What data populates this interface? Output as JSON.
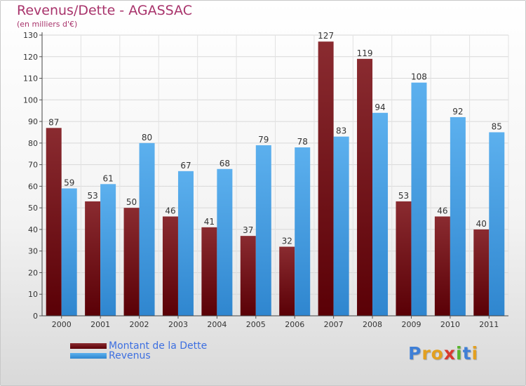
{
  "page": {
    "title": "Revenus/Dette - AGASSAC",
    "subtitle": "(en milliers d'€)"
  },
  "legend": {
    "items": [
      {
        "label": "Montant de la Dette",
        "color": "#6b0d11"
      },
      {
        "label": "Revenus",
        "color": "#4aa3e8"
      }
    ]
  },
  "logo": {
    "text": "Proxiti",
    "letters": [
      {
        "ch": "P",
        "color": "#3f7fd6"
      },
      {
        "ch": "r",
        "color": "#e3a020"
      },
      {
        "ch": "o",
        "color": "#e3a020"
      },
      {
        "ch": "x",
        "color": "#d83a2e"
      },
      {
        "ch": "i",
        "color": "#58b52c"
      },
      {
        "ch": "t",
        "color": "#3f7fd6"
      },
      {
        "ch": "i",
        "color": "#e3a020"
      }
    ]
  },
  "chart_data": {
    "type": "bar",
    "title": "Revenus/Dette - AGASSAC",
    "subtitle": "(en milliers d'€)",
    "categories": [
      "2000",
      "2001",
      "2002",
      "2003",
      "2004",
      "2005",
      "2006",
      "2007",
      "2008",
      "2009",
      "2010",
      "2011"
    ],
    "series": [
      {
        "name": "Montant de la Dette",
        "color": "#6b0d11",
        "values": [
          87,
          53,
          50,
          46,
          41,
          37,
          32,
          127,
          119,
          53,
          46,
          40
        ]
      },
      {
        "name": "Revenus",
        "color": "#4aa3e8",
        "values": [
          59,
          61,
          80,
          67,
          68,
          79,
          78,
          83,
          94,
          108,
          92,
          85
        ]
      }
    ],
    "ylim": [
      0,
      130
    ],
    "yticks": [
      0,
      10,
      20,
      30,
      40,
      50,
      60,
      70,
      80,
      90,
      100,
      110,
      120,
      130
    ],
    "grid": true,
    "legend_position": "bottom-left"
  }
}
